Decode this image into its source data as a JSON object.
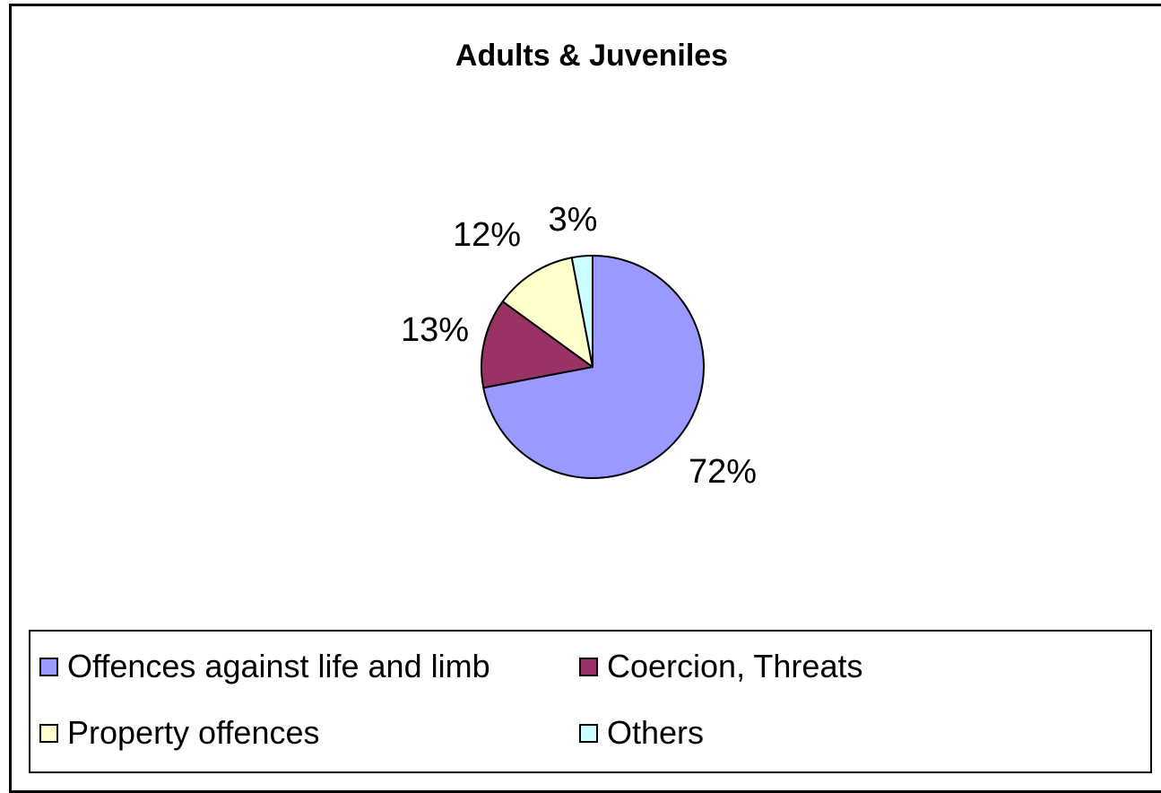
{
  "chart_data": {
    "type": "pie",
    "title": "Adults & Juveniles",
    "slices": [
      {
        "name": "Offences against life and limb",
        "value": 72,
        "label": "72%",
        "color": "#9999ff"
      },
      {
        "name": "Coercion, Threats",
        "value": 13,
        "label": "13%",
        "color": "#993366"
      },
      {
        "name": "Property offences",
        "value": 12,
        "label": "12%",
        "color": "#ffffcc"
      },
      {
        "name": "Others",
        "value": 3,
        "label": "3%",
        "color": "#ccffff"
      }
    ],
    "legend_placement": "bottom"
  }
}
